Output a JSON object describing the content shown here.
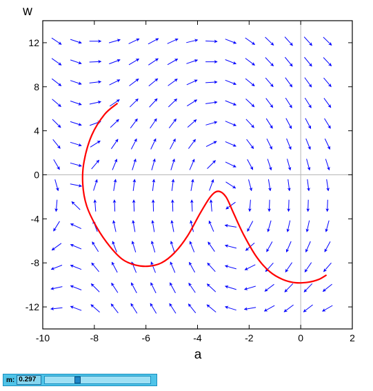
{
  "chart_data": {
    "type": "vector-field",
    "xlabel": "a",
    "ylabel": "w",
    "xlim": [
      -10,
      2
    ],
    "ylim": [
      -14,
      14
    ],
    "xticks": [
      -10,
      -8,
      -6,
      -4,
      -2,
      0,
      2
    ],
    "yticks": [
      -12,
      -8,
      -4,
      0,
      4,
      8,
      12
    ],
    "xtick_labels": [
      "-10",
      "-8",
      "-6",
      "-4",
      "-2",
      "0",
      "2"
    ],
    "ytick_labels": [
      "-12",
      "-8",
      "-4",
      "0",
      "4",
      "8",
      "12"
    ],
    "field_color": "#0000ff",
    "trajectory_color": "#ff0000",
    "grid": false,
    "zero_lines": true,
    "trajectory": [
      {
        "x": -7.1,
        "y": 6.5
      },
      {
        "x": -7.6,
        "y": 5.5
      },
      {
        "x": -8.1,
        "y": 3.6
      },
      {
        "x": -8.4,
        "y": 1.2
      },
      {
        "x": -8.45,
        "y": -0.8
      },
      {
        "x": -8.3,
        "y": -2.8
      },
      {
        "x": -7.9,
        "y": -4.8
      },
      {
        "x": -7.4,
        "y": -6.5
      },
      {
        "x": -6.9,
        "y": -7.7
      },
      {
        "x": -6.4,
        "y": -8.2
      },
      {
        "x": -5.9,
        "y": -8.3
      },
      {
        "x": -5.4,
        "y": -8.0
      },
      {
        "x": -4.9,
        "y": -7.1
      },
      {
        "x": -4.4,
        "y": -5.6
      },
      {
        "x": -3.9,
        "y": -3.5
      },
      {
        "x": -3.5,
        "y": -2.0
      },
      {
        "x": -3.2,
        "y": -1.5
      },
      {
        "x": -2.9,
        "y": -2.0
      },
      {
        "x": -2.6,
        "y": -3.5
      },
      {
        "x": -2.2,
        "y": -5.5
      },
      {
        "x": -1.7,
        "y": -7.5
      },
      {
        "x": -1.2,
        "y": -8.8
      },
      {
        "x": -0.7,
        "y": -9.5
      },
      {
        "x": -0.2,
        "y": -9.8
      },
      {
        "x": 0.3,
        "y": -9.75
      },
      {
        "x": 0.7,
        "y": -9.5
      },
      {
        "x": 1.0,
        "y": -9.1
      }
    ]
  },
  "slider": {
    "label": "m:",
    "value_text": "0.297",
    "value": 0.297,
    "range": [
      0,
      1
    ]
  }
}
